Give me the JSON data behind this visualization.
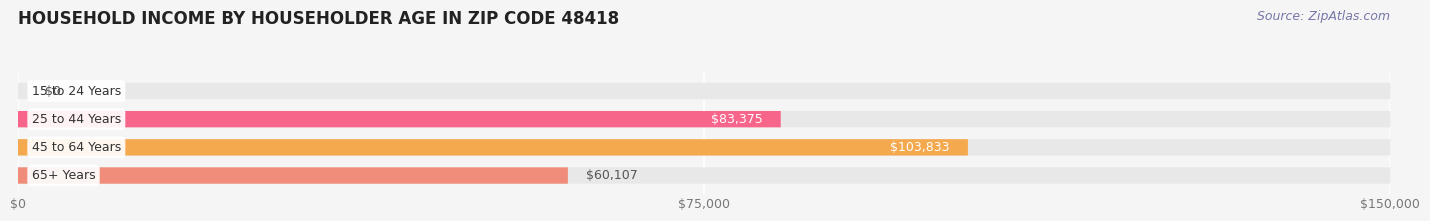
{
  "title": "HOUSEHOLD INCOME BY HOUSEHOLDER AGE IN ZIP CODE 48418",
  "source": "Source: ZipAtlas.com",
  "categories": [
    "15 to 24 Years",
    "25 to 44 Years",
    "45 to 64 Years",
    "65+ Years"
  ],
  "values": [
    0,
    83375,
    103833,
    60107
  ],
  "bar_colors": [
    "#b0aee0",
    "#f7658a",
    "#f5a94e",
    "#f08c7a"
  ],
  "background_color": "#f5f5f5",
  "bar_background_color": "#e8e8e8",
  "xlim": [
    0,
    150000
  ],
  "x_ticks": [
    0,
    75000,
    150000
  ],
  "x_tick_labels": [
    "$0",
    "$75,000",
    "$150,000"
  ],
  "value_labels": [
    "$0",
    "$83,375",
    "$103,833",
    "$60,107"
  ],
  "title_fontsize": 12,
  "label_fontsize": 9,
  "tick_fontsize": 9,
  "source_fontsize": 9
}
